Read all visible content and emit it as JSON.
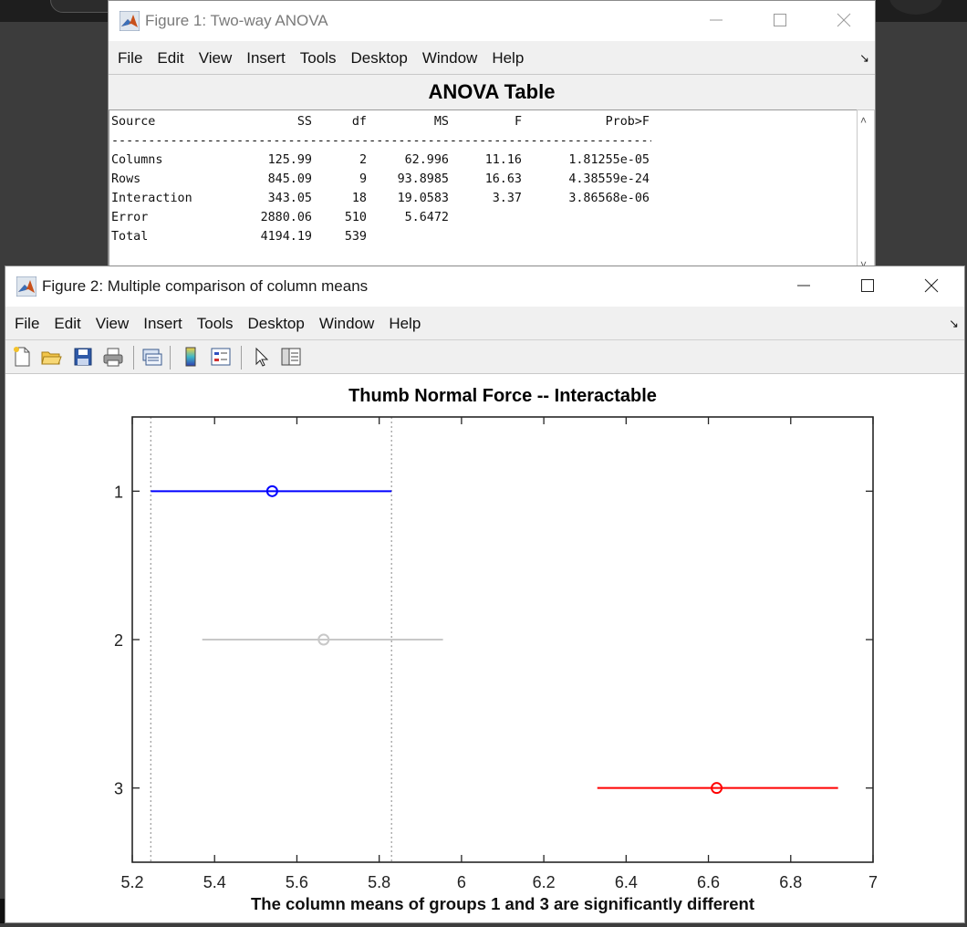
{
  "figure1": {
    "title": "Figure 1: Two-way ANOVA",
    "menu": [
      "File",
      "Edit",
      "View",
      "Insert",
      "Tools",
      "Desktop",
      "Window",
      "Help"
    ],
    "table_title": "ANOVA Table",
    "headers": [
      "Source",
      "SS",
      "df",
      "MS",
      "F",
      "Prob>F"
    ],
    "separator": "-----------------------------------------------------------------------------------",
    "rows": [
      [
        "Columns",
        "125.99",
        "2",
        "62.996",
        "11.16",
        "1.81255e-05"
      ],
      [
        "Rows",
        "845.09",
        "9",
        "93.8985",
        "16.63",
        "4.38559e-24"
      ],
      [
        "Interaction",
        "343.05",
        "18",
        "19.0583",
        "3.37",
        "3.86568e-06"
      ],
      [
        "Error",
        "2880.06",
        "510",
        "5.6472",
        "",
        ""
      ],
      [
        "Total",
        "4194.19",
        "539",
        "",
        "",
        ""
      ]
    ]
  },
  "figure2": {
    "title": "Figure 2: Multiple comparison of column means",
    "menu": [
      "File",
      "Edit",
      "View",
      "Insert",
      "Tools",
      "Desktop",
      "Window",
      "Help"
    ],
    "toolbar_icons": [
      "new-figure-icon",
      "open-file-icon",
      "save-icon",
      "print-icon",
      "link-plot-icon",
      "colorbar-icon",
      "legend-icon",
      "edit-plot-icon",
      "property-inspector-icon"
    ]
  },
  "chart_data": {
    "type": "scatter",
    "title": "Thumb Normal Force -- Interactable",
    "xlabel": "The column means of groups 1 and 3 are significantly different",
    "ylabel": "",
    "xlim": [
      5.2,
      7
    ],
    "ylim": [
      0.5,
      3.5
    ],
    "xticks": [
      "5.2",
      "5.4",
      "5.6",
      "5.8",
      "6",
      "6.2",
      "6.4",
      "6.6",
      "6.8",
      "7"
    ],
    "yticks": [
      "1",
      "2",
      "3"
    ],
    "reference_lines": [
      5.245,
      5.83
    ],
    "groups": [
      {
        "group": 1,
        "mean": 5.54,
        "lower": 5.245,
        "upper": 5.83,
        "color": "#0000ff"
      },
      {
        "group": 2,
        "mean": 5.665,
        "lower": 5.37,
        "upper": 5.955,
        "color": "#c8c8c8"
      },
      {
        "group": 3,
        "mean": 6.62,
        "lower": 6.33,
        "upper": 6.915,
        "color": "#ff0000"
      }
    ],
    "grid": false
  }
}
